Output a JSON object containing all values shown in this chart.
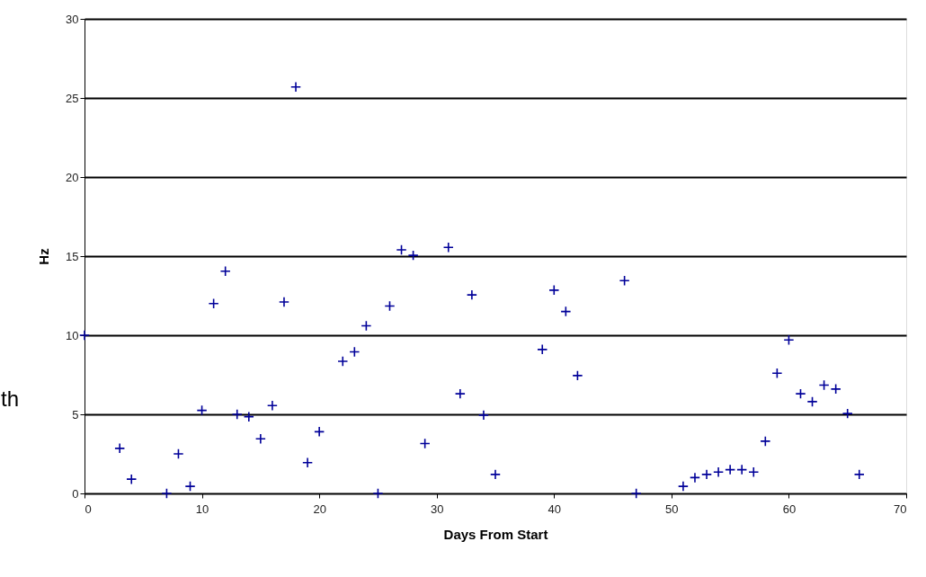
{
  "chart_data": {
    "type": "scatter",
    "xlabel": "Days From Start",
    "ylabel": "Hz",
    "x": [
      0,
      3,
      4,
      7,
      8,
      9,
      10,
      11,
      12,
      13,
      14,
      15,
      16,
      17,
      18,
      19,
      20,
      22,
      23,
      24,
      25,
      26,
      27,
      28,
      29,
      31,
      32,
      33,
      34,
      35,
      39,
      40,
      41,
      42,
      46,
      47,
      51,
      52,
      53,
      54,
      55,
      56,
      57,
      58,
      59,
      60,
      61,
      62,
      63,
      64,
      65,
      66
    ],
    "series": [
      {
        "color": "#000099",
        "values": [
          10.0,
          2.85,
          0.9,
          0,
          2.5,
          0.45,
          5.25,
          12.0,
          14.05,
          5.0,
          4.85,
          3.45,
          5.55,
          12.1,
          25.7,
          1.95,
          3.9,
          8.35,
          8.95,
          10.6,
          0,
          11.85,
          15.4,
          15.05,
          3.15,
          15.55,
          6.3,
          12.55,
          4.95,
          1.2,
          9.1,
          12.85,
          11.5,
          7.45,
          13.45,
          0,
          0.45,
          1.0,
          1.2,
          1.35,
          1.5,
          1.5,
          1.35,
          3.3,
          7.6,
          9.7,
          6.3,
          5.8,
          6.85,
          6.6,
          5.05,
          1.2
        ]
      }
    ],
    "xlim": [
      0,
      70
    ],
    "xticks": [
      0,
      10,
      20,
      30,
      40,
      50,
      60,
      70
    ],
    "ylim": [
      0,
      30
    ],
    "yticks": [
      0,
      5,
      10,
      15,
      20,
      25,
      30
    ],
    "grid": "y",
    "marker": "cross",
    "annotations": [
      "th"
    ]
  }
}
